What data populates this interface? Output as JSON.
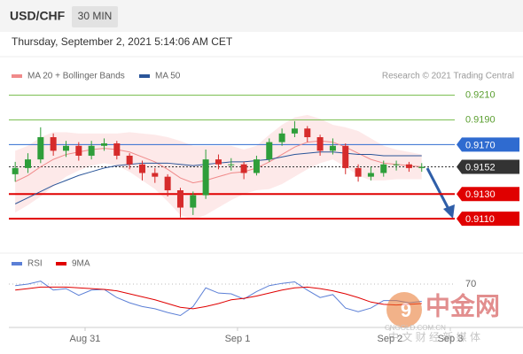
{
  "chart_data": {
    "type": "candlestick",
    "title": "USD/CHF",
    "timeframe": "30 MIN",
    "subtitle": "Thursday, September 2, 2021 5:14:06 AM CET",
    "source": "Research © 2021 Trading Central",
    "up_color": "#2e9e3a",
    "down_color": "#d62b2b",
    "xlim": [
      -12,
      58.2
    ],
    "ylim": [
      0.9085,
      0.9219
    ],
    "xticks": [
      {
        "value": 0,
        "label": "Aug 31"
      },
      {
        "value": 24,
        "label": "Sep 1"
      },
      {
        "value": 48,
        "label": "Sep 2"
      },
      {
        "value": 57.5,
        "label": "Sep 3"
      }
    ],
    "x": [
      -11,
      -9,
      -7,
      -5,
      -3,
      -1,
      1,
      3,
      5,
      7,
      9,
      11,
      13,
      15,
      17,
      19,
      21,
      23,
      25,
      27,
      29,
      31,
      33,
      35,
      37,
      39,
      41,
      43,
      45,
      47,
      49,
      51,
      53
    ],
    "open": [
      0.9146,
      0.9151,
      0.9158,
      0.9176,
      0.9165,
      0.9169,
      0.9161,
      0.9169,
      0.9171,
      0.9161,
      0.9154,
      0.9147,
      0.9144,
      0.9133,
      0.9119,
      0.9129,
      0.9158,
      0.9154,
      0.9154,
      0.9147,
      0.9158,
      0.9172,
      0.9179,
      0.9183,
      0.9176,
      0.9165,
      0.9169,
      0.9151,
      0.9144,
      0.9147,
      0.9154,
      0.9154,
      0.9151
    ],
    "high": [
      0.9156,
      0.9163,
      0.9184,
      0.9179,
      0.9173,
      0.9172,
      0.9173,
      0.9175,
      0.9173,
      0.9163,
      0.9157,
      0.9151,
      0.9146,
      0.9135,
      0.9132,
      0.9166,
      0.9162,
      0.9159,
      0.9156,
      0.9161,
      0.9175,
      0.9183,
      0.9189,
      0.9185,
      0.9178,
      0.9175,
      0.9171,
      0.9154,
      0.9152,
      0.9157,
      0.9157,
      0.9156,
      0.9155
    ],
    "low": [
      0.914,
      0.9147,
      0.9155,
      0.9161,
      0.916,
      0.9157,
      0.9158,
      0.9165,
      0.9158,
      0.915,
      0.9141,
      0.9139,
      0.9128,
      0.9111,
      0.9113,
      0.9126,
      0.915,
      0.9149,
      0.9142,
      0.9145,
      0.9156,
      0.9169,
      0.9176,
      0.9172,
      0.9161,
      0.9162,
      0.9146,
      0.914,
      0.9141,
      0.9144,
      0.9149,
      0.9148,
      0.9148
    ],
    "close": [
      0.9151,
      0.9158,
      0.9176,
      0.9165,
      0.9169,
      0.9161,
      0.9169,
      0.9171,
      0.9161,
      0.9154,
      0.9147,
      0.9144,
      0.9133,
      0.9119,
      0.9129,
      0.9158,
      0.9154,
      0.9154,
      0.9147,
      0.9158,
      0.9172,
      0.9179,
      0.9183,
      0.9176,
      0.9165,
      0.9169,
      0.9151,
      0.9144,
      0.9147,
      0.9154,
      0.9154,
      0.9151,
      0.9152
    ],
    "series": [
      {
        "name": "MA 20 + Bollinger Bands",
        "color": "#f08a8a",
        "values": [
          0.914,
          0.9145,
          0.9152,
          0.9158,
          0.9162,
          0.9164,
          0.9166,
          0.9167,
          0.9166,
          0.9164,
          0.916,
          0.9156,
          0.915,
          0.9143,
          0.9139,
          0.9141,
          0.9144,
          0.9147,
          0.9148,
          0.9151,
          0.9156,
          0.9162,
          0.9168,
          0.9172,
          0.9173,
          0.9172,
          0.9168,
          0.9163,
          0.9158,
          0.9155,
          0.9154,
          0.9153,
          0.9152
        ],
        "upper": [
          0.9165,
          0.9169,
          0.9176,
          0.918,
          0.918,
          0.9179,
          0.9179,
          0.9179,
          0.9179,
          0.918,
          0.9179,
          0.9178,
          0.9176,
          0.9173,
          0.9169,
          0.9169,
          0.9169,
          0.9169,
          0.9166,
          0.9169,
          0.9178,
          0.9186,
          0.9192,
          0.9194,
          0.9191,
          0.9186,
          0.9184,
          0.9181,
          0.9175,
          0.9169,
          0.9166,
          0.9164,
          0.9162
        ],
        "lower": [
          0.9115,
          0.9121,
          0.9128,
          0.9136,
          0.9144,
          0.9149,
          0.9153,
          0.9155,
          0.9153,
          0.9148,
          0.9141,
          0.9134,
          0.9124,
          0.9113,
          0.9109,
          0.9113,
          0.9119,
          0.9125,
          0.913,
          0.9133,
          0.9134,
          0.9138,
          0.9144,
          0.915,
          0.9155,
          0.9158,
          0.9152,
          0.9145,
          0.9141,
          0.9141,
          0.9142,
          0.9142,
          0.9142
        ]
      },
      {
        "name": "MA 50",
        "color": "#2a5599",
        "values": [
          0.9122,
          0.9127,
          0.9132,
          0.9137,
          0.9141,
          0.9145,
          0.9148,
          0.9151,
          0.9153,
          0.9154,
          0.9155,
          0.9155,
          0.9155,
          0.9154,
          0.9153,
          0.9154,
          0.9155,
          0.9156,
          0.9156,
          0.9157,
          0.9158,
          0.916,
          0.9162,
          0.9163,
          0.9164,
          0.9164,
          0.9163,
          0.9162,
          0.9162,
          0.9161,
          0.9161,
          0.9161,
          0.9161
        ]
      }
    ],
    "levels": [
      {
        "value": 0.921,
        "label": "0.9210",
        "color": "#7cbf52",
        "boxed": false
      },
      {
        "value": 0.919,
        "label": "0.9190",
        "color": "#7cbf52",
        "boxed": false
      },
      {
        "value": 0.917,
        "label": "0.9170",
        "color": "#2f6bd0",
        "boxed": true
      },
      {
        "value": 0.9152,
        "label": "0.9152",
        "color": "#333333",
        "boxed": true,
        "dashed": true
      },
      {
        "value": 0.913,
        "label": "0.9130",
        "color": "#e00000",
        "boxed": true
      },
      {
        "value": 0.911,
        "label": "0.9110",
        "color": "#e00000",
        "boxed": true
      }
    ],
    "rsi": {
      "ylim": [
        12,
        89
      ],
      "yticks": [
        70
      ],
      "series": [
        {
          "name": "RSI",
          "color": "#5b7fd6",
          "values": [
            68,
            70,
            74,
            62,
            64,
            55,
            62,
            63,
            52,
            45,
            40,
            37,
            32,
            28,
            40,
            65,
            58,
            57,
            50,
            60,
            68,
            71,
            73,
            62,
            52,
            56,
            38,
            33,
            38,
            48,
            48,
            45,
            47
          ]
        },
        {
          "name": "9MA",
          "color": "#e00000",
          "values": [
            62,
            64,
            66,
            66,
            66,
            65,
            64,
            63,
            61,
            57,
            53,
            49,
            44,
            39,
            37,
            40,
            44,
            49,
            51,
            54,
            58,
            62,
            65,
            66,
            64,
            61,
            57,
            52,
            46,
            43,
            42,
            43,
            44
          ]
        }
      ]
    }
  },
  "watermark": {
    "name": "中金网",
    "url": "CNGOLD.COM.CN",
    "tagline": "中 文 财 经 新 媒 体"
  }
}
